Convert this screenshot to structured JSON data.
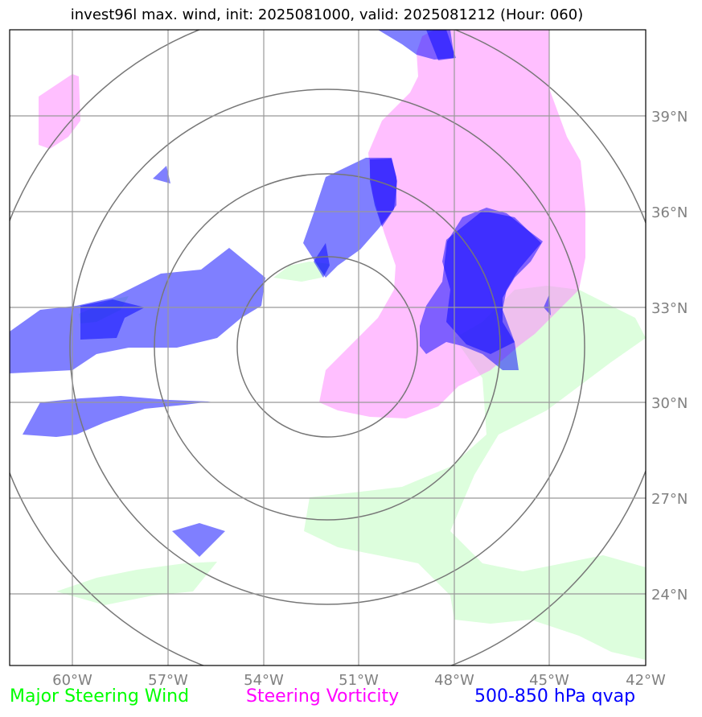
{
  "title": "invest96l max. wind, init: 2025081000, valid: 2025081212 (Hour: 060)",
  "colors": {
    "steering_wind": "#00ff00",
    "steering_vorticity": "#ff00ff",
    "qvap": "#0000ff",
    "tick_label": "#808080",
    "gridline": "#999999",
    "range_ring": "#777777"
  },
  "map": {
    "lon_range": [
      -62,
      -42
    ],
    "lat_range": [
      22,
      41.5
    ],
    "lon_ticks": [
      {
        "value": -60,
        "label": "60°W"
      },
      {
        "value": -57,
        "label": "57°W"
      },
      {
        "value": -54,
        "label": "54°W"
      },
      {
        "value": -51,
        "label": "51°W"
      },
      {
        "value": -48,
        "label": "48°W"
      },
      {
        "value": -45,
        "label": "45°W"
      },
      {
        "value": -42,
        "label": "42°W"
      }
    ],
    "lat_ticks": [
      {
        "value": 39,
        "label": "39°N"
      },
      {
        "value": 36,
        "label": "36°N"
      },
      {
        "value": 33,
        "label": "33°N"
      },
      {
        "value": 30,
        "label": "30°N"
      },
      {
        "value": 27,
        "label": "27°N"
      },
      {
        "value": 24,
        "label": "24°N"
      }
    ],
    "range_rings": {
      "center": {
        "lon": -52,
        "lat": 32
      },
      "count": 4
    }
  },
  "legend": {
    "steering_wind": "Major Steering Wind",
    "steering_vorticity": "Steering Vorticity",
    "qvap": "500-850 hPa qvap"
  }
}
